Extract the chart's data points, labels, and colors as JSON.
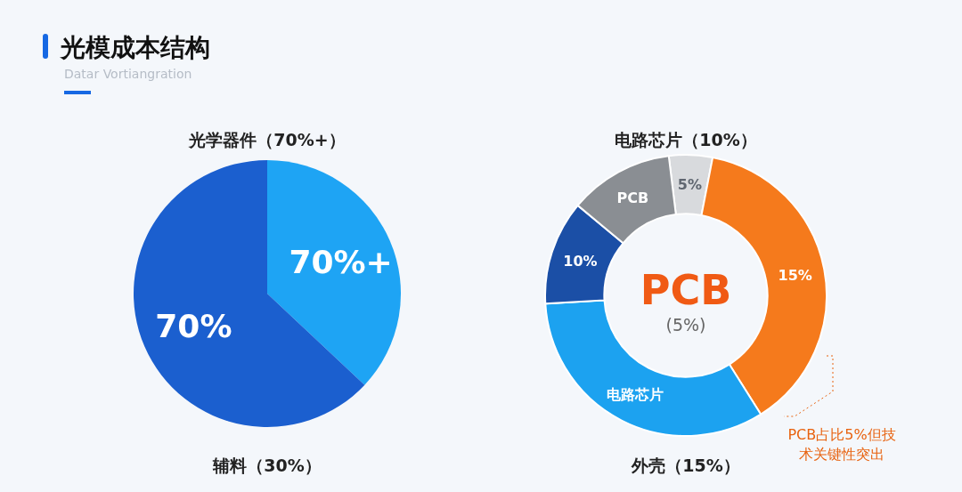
{
  "chart_data": [
    {
      "type": "pie",
      "title": "光模成本结构",
      "subtitle": "Datar Vortiangration",
      "categories": [
        "70%+",
        "70%"
      ],
      "values": [
        37,
        63
      ],
      "colors": [
        "#1ea4f4",
        "#1b5fcf"
      ],
      "annotations": [
        "光学器件（70%+）",
        "辅料（30%）"
      ]
    },
    {
      "type": "donut",
      "categories": [
        "5%",
        "15%",
        "电路芯片",
        "10%",
        "PCB"
      ],
      "values": [
        5,
        38,
        33,
        12,
        12
      ],
      "colors": [
        "#d8dadd",
        "#f57a1c",
        "#1ca2f0",
        "#1b4fa6",
        "#8a8e93"
      ],
      "annotations": [
        "电路芯片（10%）",
        "PCB",
        "(5%)",
        "外壳（15%）",
        "PCB占比5%但技术关键性突出"
      ]
    }
  ]
}
